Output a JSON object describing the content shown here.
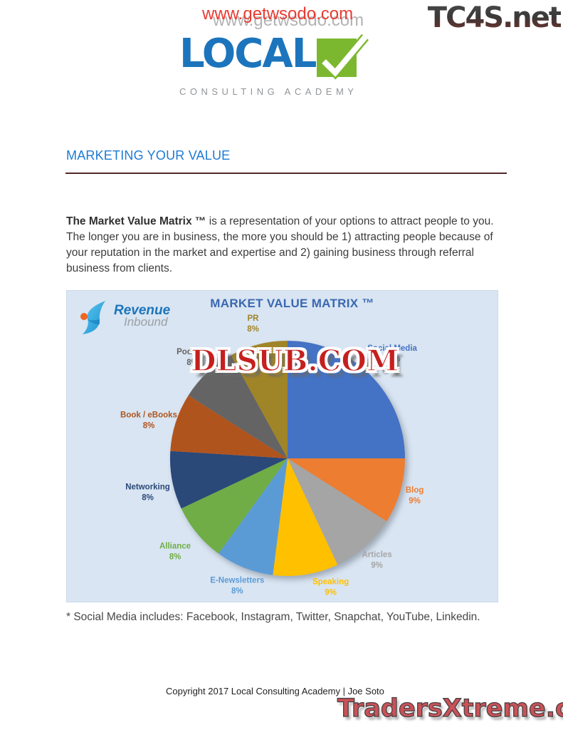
{
  "watermarks": {
    "top_red": "www.getwsodo.com",
    "top_gray": "www.getwsodo.com",
    "tc4s": "TC4S.net",
    "dlsub": "DLSUB.COM",
    "traders": "TradersXtreme.com"
  },
  "logo": {
    "word": "LOCAL",
    "subtitle": "CONSULTING ACADEMY",
    "blue": "#1c75bc",
    "green": "#7cb82f"
  },
  "section": {
    "heading": "MARKETING YOUR VALUE",
    "heading_color": "#1e7ad4",
    "rule_color": "#53282a"
  },
  "body": {
    "lead": "The Market Value Matrix ™",
    "text": " is a representation of your options to attract people to you. The longer you are in business, the more you should be 1) attracting people because of your reputation in the market and expertise and 2) gaining business through referral business from clients."
  },
  "chart_logo": {
    "line1": "Revenue",
    "line2": "Inbound"
  },
  "chart_data": {
    "type": "pie",
    "title": "MARKET VALUE MATRIX ™",
    "panel_bg": "#d9e5f2",
    "start_angle_deg": 0,
    "direction": "clockwise",
    "legend": "none",
    "labels": "outside, slice-colored, name over percent",
    "slices": [
      {
        "label": "Social Media",
        "value": 25,
        "color": "#4472c4"
      },
      {
        "label": "Blog",
        "value": 9,
        "color": "#ed7d31"
      },
      {
        "label": "Articles",
        "value": 9,
        "color": "#a5a5a5"
      },
      {
        "label": "Speaking",
        "value": 9,
        "color": "#ffc000"
      },
      {
        "label": "E-Newsletters",
        "value": 8,
        "color": "#5b9bd5"
      },
      {
        "label": "Alliance",
        "value": 8,
        "color": "#70ad47"
      },
      {
        "label": "Networking",
        "value": 8,
        "color": "#2a4878"
      },
      {
        "label": "Book / eBooks",
        "value": 8,
        "color": "#b0541e"
      },
      {
        "label": "Podcast",
        "value": 8,
        "color": "#646464"
      },
      {
        "label": "PR",
        "value": 8,
        "color": "#a08428"
      }
    ]
  },
  "footnote": "* Social Media includes: Facebook, Instagram, Twitter, Snapchat, YouTube, Linkedin.",
  "footer": "Copyright 2017 Local Consulting Academy | Joe Soto"
}
